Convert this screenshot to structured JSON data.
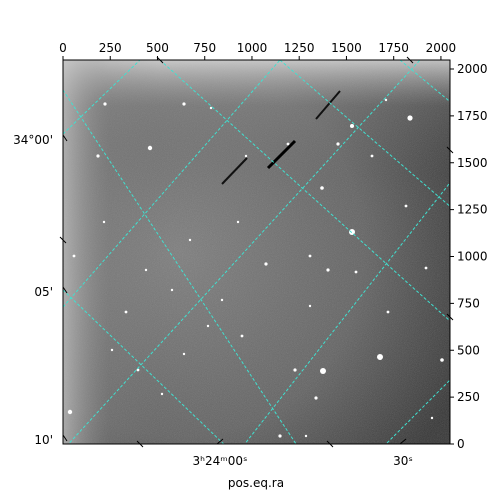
{
  "chart_data": {
    "type": "image",
    "xlabel": "pos.eq.ra",
    "ylabel": "",
    "pixel_axes": {
      "x_ticks": [
        "0",
        "250",
        "500",
        "750",
        "1000",
        "1250",
        "1500",
        "1750",
        "2000"
      ],
      "x_tick_values": [
        0,
        250,
        500,
        750,
        1000,
        1250,
        1500,
        1750,
        2000
      ],
      "y_ticks": [
        "0",
        "250",
        "500",
        "750",
        "1000",
        "1250",
        "1500",
        "1750",
        "2000"
      ],
      "y_tick_values": [
        0,
        250,
        500,
        750,
        1000,
        1250,
        1500,
        1750,
        2000
      ],
      "xlim": [
        0,
        2048
      ],
      "ylim": [
        0,
        2048
      ]
    },
    "world_axes": {
      "dec_ticks": [
        "34°00'",
        "05'",
        "10'"
      ],
      "ra_ticks": [
        "3ʰ24ᵐ00ˢ",
        "30ˢ"
      ]
    },
    "grid": true,
    "grid_color": "#40e0d0",
    "colormap": "grayscale",
    "streaks": 3
  }
}
